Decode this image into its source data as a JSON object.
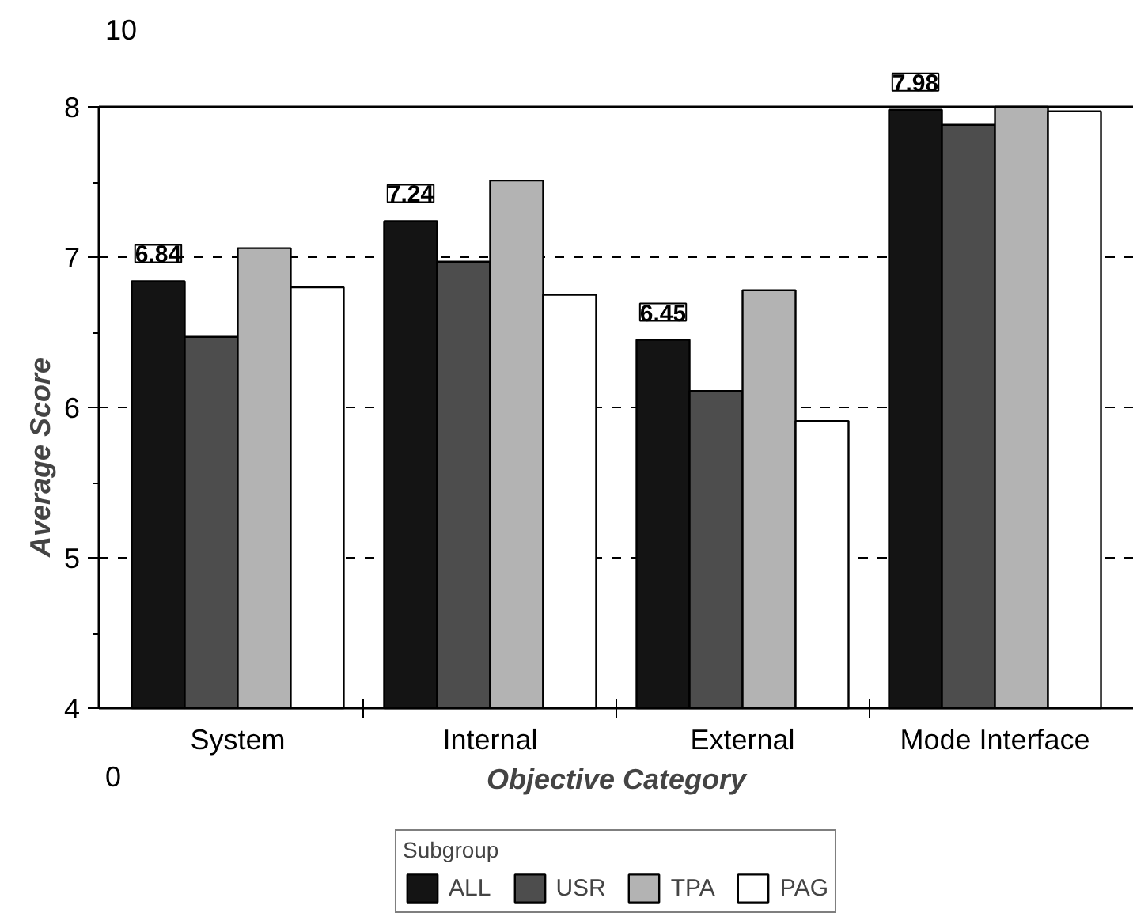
{
  "chart_data": {
    "type": "bar",
    "xlabel": "Objective Category",
    "ylabel": "Average Score",
    "categories": [
      "System",
      "Internal",
      "External",
      "Mode Interface"
    ],
    "series": [
      {
        "name": "ALL",
        "color": "#141414",
        "values": [
          6.84,
          7.24,
          6.45,
          7.98
        ],
        "value_labels": [
          "6.84",
          "7.24",
          "6.45",
          "7.98"
        ]
      },
      {
        "name": "USR",
        "color": "#4d4d4d",
        "values": [
          6.47,
          6.97,
          6.11,
          7.88
        ]
      },
      {
        "name": "TPA",
        "color": "#b3b3b3",
        "values": [
          7.06,
          7.51,
          6.78,
          8.0
        ]
      },
      {
        "name": "PAG",
        "color": "#ffffff",
        "values": [
          6.8,
          6.75,
          5.91,
          7.97
        ]
      }
    ],
    "legend_title": "Subgroup",
    "legend": "bottom",
    "ylim": [
      4,
      8
    ],
    "yticks": [
      4,
      5,
      6,
      7,
      8
    ],
    "grid": "y",
    "annotations": [
      "10",
      "0"
    ]
  }
}
